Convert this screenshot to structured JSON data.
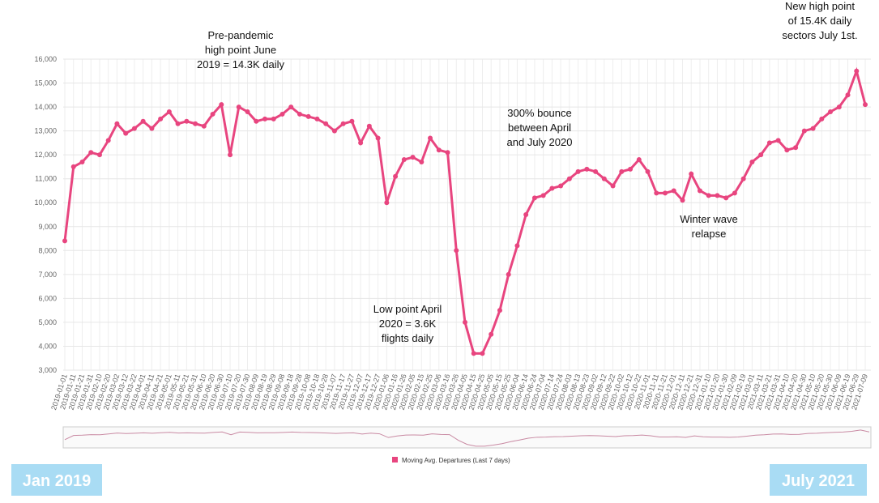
{
  "chart_data": {
    "type": "line",
    "annotations": [
      [
        "Pre-pandemic",
        "high point June",
        "2019 = 14.3K daily"
      ],
      [
        "Low point April",
        "2020 = 3.6K",
        "flights daily"
      ],
      [
        "300% bounce",
        "between April",
        "and July 2020"
      ],
      [
        "Winter wave",
        "relapse"
      ],
      [
        "New high point",
        "of 15.4K daily",
        "sectors July 1st."
      ]
    ],
    "range_labels": [
      "Jan 2019",
      "July 2021"
    ],
    "categories": [
      "2019-01-01",
      "2019-01-11",
      "2019-01-21",
      "2019-01-31",
      "2019-02-10",
      "2019-02-20",
      "2019-03-02",
      "2019-03-12",
      "2019-03-22",
      "2019-04-01",
      "2019-04-11",
      "2019-04-21",
      "2019-05-01",
      "2019-05-11",
      "2019-05-21",
      "2019-05-31",
      "2019-06-10",
      "2019-06-20",
      "2019-06-30",
      "2019-07-10",
      "2019-07-20",
      "2019-07-30",
      "2019-08-09",
      "2019-08-19",
      "2019-08-29",
      "2019-09-08",
      "2019-09-18",
      "2019-09-28",
      "2019-10-08",
      "2019-10-18",
      "2019-10-28",
      "2019-11-07",
      "2019-11-17",
      "2019-11-27",
      "2019-12-07",
      "2019-12-17",
      "2019-12-27",
      "2020-01-06",
      "2020-01-16",
      "2020-01-26",
      "2020-02-05",
      "2020-02-15",
      "2020-02-25",
      "2020-03-06",
      "2020-03-16",
      "2020-03-26",
      "2020-04-05",
      "2020-04-15",
      "2020-04-25",
      "2020-05-05",
      "2020-05-15",
      "2020-05-25",
      "2020-06-04",
      "2020-06-14",
      "2020-06-24",
      "2020-07-04",
      "2020-07-14",
      "2020-07-24",
      "2020-08-03",
      "2020-08-13",
      "2020-08-23",
      "2020-09-02",
      "2020-09-12",
      "2020-09-22",
      "2020-10-02",
      "2020-10-12",
      "2020-10-22",
      "2020-11-01",
      "2020-11-11",
      "2020-11-21",
      "2020-12-01",
      "2020-12-11",
      "2020-12-21",
      "2020-12-31",
      "2021-01-10",
      "2021-01-20",
      "2021-01-30",
      "2021-02-09",
      "2021-02-19",
      "2021-03-01",
      "2021-03-11",
      "2021-03-21",
      "2021-03-31",
      "2021-04-10",
      "2021-04-20",
      "2021-04-30",
      "2021-05-10",
      "2021-05-20",
      "2021-05-30",
      "2021-06-09",
      "2021-06-19",
      "2021-06-29",
      "2021-07-09"
    ],
    "series": [
      {
        "name": "Moving Avg. Departures (Last 7 days)",
        "color": "#e8457f",
        "values": [
          8403,
          11500,
          11700,
          12100,
          12000,
          12600,
          13300,
          12900,
          13100,
          13400,
          13100,
          13500,
          13800,
          13300,
          13400,
          13300,
          13200,
          13700,
          14100,
          12000,
          14000,
          13800,
          13400,
          13500,
          13500,
          13700,
          14000,
          13700,
          13600,
          13500,
          13300,
          13000,
          13300,
          13400,
          12500,
          13200,
          12700,
          10000,
          11100,
          11800,
          11900,
          11700,
          12700,
          12200,
          12100,
          8000,
          5000,
          3700,
          3700,
          4500,
          5500,
          7000,
          8200,
          9500,
          10200,
          10300,
          10600,
          10700,
          11000,
          11300,
          11400,
          11300,
          11000,
          10700,
          11300,
          11400,
          11800,
          11300,
          10400,
          10400,
          10500,
          10100,
          11200,
          10500,
          10300,
          10300,
          10200,
          10400,
          11000,
          11700,
          12000,
          12500,
          12600,
          12200,
          12300,
          13000,
          13100,
          13500,
          13800,
          14000,
          14500,
          15500,
          14100
        ]
      }
    ],
    "ylim": [
      3000,
      16000
    ],
    "yticks": [
      {
        "value": 3000,
        "label": "3,000"
      },
      {
        "value": 4000,
        "label": "4,000"
      },
      {
        "value": 5000,
        "label": "5,000"
      },
      {
        "value": 6000,
        "label": "6,000"
      },
      {
        "value": 7000,
        "label": "7,000"
      },
      {
        "value": 8000,
        "label": "8,000"
      },
      {
        "value": 9000,
        "label": "9,000"
      },
      {
        "value": 10000,
        "label": "10,000"
      },
      {
        "value": 11000,
        "label": "11,000"
      },
      {
        "value": 12000,
        "label": "12,000"
      },
      {
        "value": 13000,
        "label": "13,000"
      },
      {
        "value": 14000,
        "label": "14,000"
      },
      {
        "value": 15000,
        "label": "15,000"
      },
      {
        "value": 16000,
        "label": "16,000"
      }
    ],
    "grid": true
  }
}
